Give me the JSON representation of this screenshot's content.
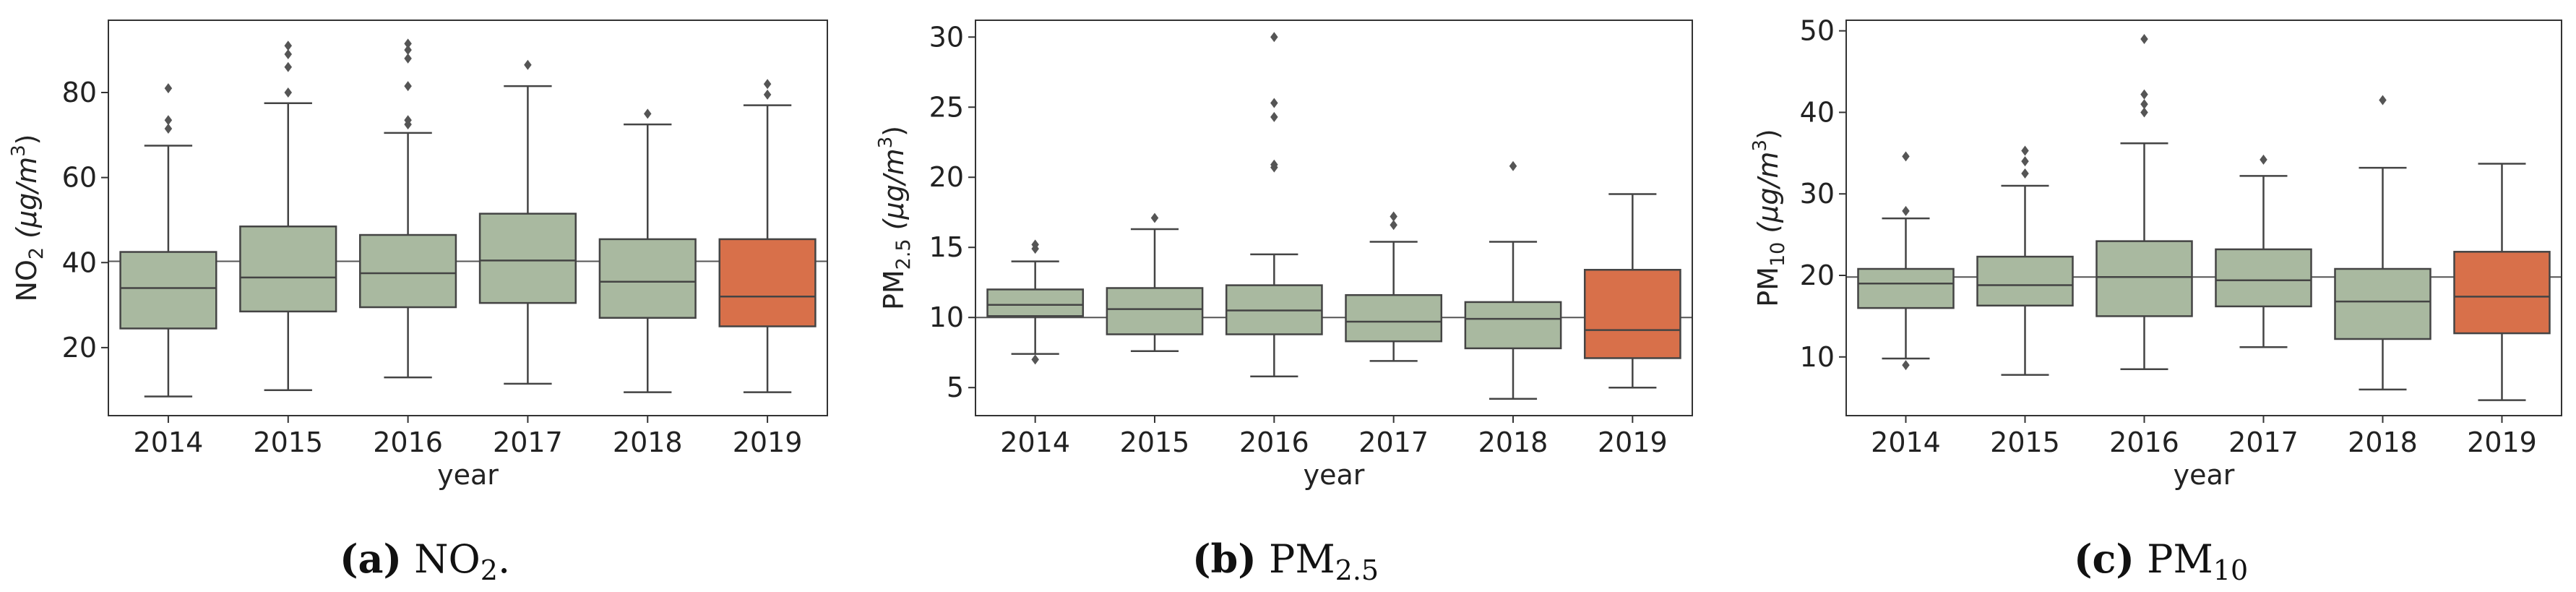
{
  "colors": {
    "box": "#a9b9a0",
    "highlight": "#d8704a",
    "line": "#444444",
    "frame": "#333333"
  },
  "chart_data": [
    {
      "type": "box",
      "id": "a",
      "caption_label": "(a)",
      "caption_text": "NO",
      "caption_sub": "2",
      "caption_tail": ".",
      "ylabel": "NO",
      "ylabel_sub": "2",
      "ylabel_unit": "(μg/m",
      "ylabel_sup": "3",
      "ylabel_close": ")",
      "xlabel": "year",
      "ylim": [
        4,
        97
      ],
      "yticks": [
        "20",
        "40",
        "60",
        "80"
      ],
      "reference_line": 40.3,
      "categories": [
        "2014",
        "2015",
        "2016",
        "2017",
        "2018",
        "2019"
      ],
      "highlight": "2019",
      "boxes": [
        {
          "whislo": 8.5,
          "q1": 24.5,
          "med": 34,
          "q3": 42.5,
          "whishi": 67.5,
          "fliers": [
            71.5,
            73.5,
            81
          ]
        },
        {
          "whislo": 10,
          "q1": 28.5,
          "med": 36.5,
          "q3": 48.5,
          "whishi": 77.5,
          "fliers": [
            80,
            86,
            89,
            91
          ]
        },
        {
          "whislo": 13,
          "q1": 29.5,
          "med": 37.5,
          "q3": 46.5,
          "whishi": 70.5,
          "fliers": [
            72.5,
            73.5,
            81.5,
            88,
            90,
            91.5
          ]
        },
        {
          "whislo": 11.5,
          "q1": 30.5,
          "med": 40.5,
          "q3": 51.5,
          "whishi": 81.5,
          "fliers": [
            86.5
          ]
        },
        {
          "whislo": 9.5,
          "q1": 27,
          "med": 35.5,
          "q3": 45.5,
          "whishi": 72.5,
          "fliers": [
            75
          ]
        },
        {
          "whislo": 9.5,
          "q1": 25,
          "med": 32,
          "q3": 45.5,
          "whishi": 77,
          "fliers": [
            79.5,
            82
          ]
        }
      ]
    },
    {
      "type": "box",
      "id": "b",
      "caption_label": "(b)",
      "caption_text": "PM",
      "caption_sub": "2.5",
      "caption_tail": "",
      "ylabel": "PM",
      "ylabel_sub": "2.5",
      "ylabel_unit": "(μg/m",
      "ylabel_sup": "3",
      "ylabel_close": ")",
      "xlabel": "year",
      "ylim": [
        3,
        31.2
      ],
      "yticks": [
        "5",
        "10",
        "15",
        "20",
        "25",
        "30"
      ],
      "reference_line": 10.0,
      "categories": [
        "2014",
        "2015",
        "2016",
        "2017",
        "2018",
        "2019"
      ],
      "highlight": "2019",
      "boxes": [
        {
          "whislo": 7.4,
          "q1": 10.1,
          "med": 10.9,
          "q3": 12.0,
          "whishi": 14.0,
          "fliers": [
            7.0,
            14.9,
            15.2
          ]
        },
        {
          "whislo": 7.6,
          "q1": 8.8,
          "med": 10.6,
          "q3": 12.1,
          "whishi": 16.3,
          "fliers": [
            17.1
          ]
        },
        {
          "whislo": 5.8,
          "q1": 8.8,
          "med": 10.5,
          "q3": 12.3,
          "whishi": 14.5,
          "fliers": [
            20.7,
            20.9,
            24.3,
            25.3,
            30.0
          ]
        },
        {
          "whislo": 6.9,
          "q1": 8.3,
          "med": 9.7,
          "q3": 11.6,
          "whishi": 15.4,
          "fliers": [
            16.6,
            17.2
          ]
        },
        {
          "whislo": 4.2,
          "q1": 7.8,
          "med": 9.9,
          "q3": 11.1,
          "whishi": 15.4,
          "fliers": [
            20.8
          ]
        },
        {
          "whislo": 5.0,
          "q1": 7.1,
          "med": 9.1,
          "q3": 13.4,
          "whishi": 18.8,
          "fliers": []
        }
      ]
    },
    {
      "type": "box",
      "id": "c",
      "caption_label": "(c)",
      "caption_text": "PM",
      "caption_sub": "10",
      "caption_tail": "",
      "ylabel": "PM",
      "ylabel_sub": "10",
      "ylabel_unit": "(μg/m",
      "ylabel_sup": "3",
      "ylabel_close": ")",
      "xlabel": "year",
      "ylim": [
        2.8,
        51.3
      ],
      "yticks": [
        "10",
        "20",
        "30",
        "40",
        "50"
      ],
      "reference_line": 19.8,
      "categories": [
        "2014",
        "2015",
        "2016",
        "2017",
        "2018",
        "2019"
      ],
      "highlight": "2019",
      "boxes": [
        {
          "whislo": 9.8,
          "q1": 16.0,
          "med": 19.0,
          "q3": 20.8,
          "whishi": 27.0,
          "fliers": [
            9.0,
            27.9,
            34.6
          ]
        },
        {
          "whislo": 7.8,
          "q1": 16.3,
          "med": 18.8,
          "q3": 22.3,
          "whishi": 31.0,
          "fliers": [
            32.5,
            34.0,
            35.3
          ]
        },
        {
          "whislo": 8.5,
          "q1": 15.0,
          "med": 19.8,
          "q3": 24.2,
          "whishi": 36.2,
          "fliers": [
            40.0,
            41.0,
            42.2,
            49.0
          ]
        },
        {
          "whislo": 11.2,
          "q1": 16.2,
          "med": 19.4,
          "q3": 23.2,
          "whishi": 32.2,
          "fliers": [
            34.2
          ]
        },
        {
          "whislo": 6.0,
          "q1": 12.2,
          "med": 16.8,
          "q3": 20.8,
          "whishi": 33.2,
          "fliers": [
            41.5
          ]
        },
        {
          "whislo": 4.7,
          "q1": 12.9,
          "med": 17.4,
          "q3": 22.9,
          "whishi": 33.7,
          "fliers": []
        }
      ]
    }
  ]
}
